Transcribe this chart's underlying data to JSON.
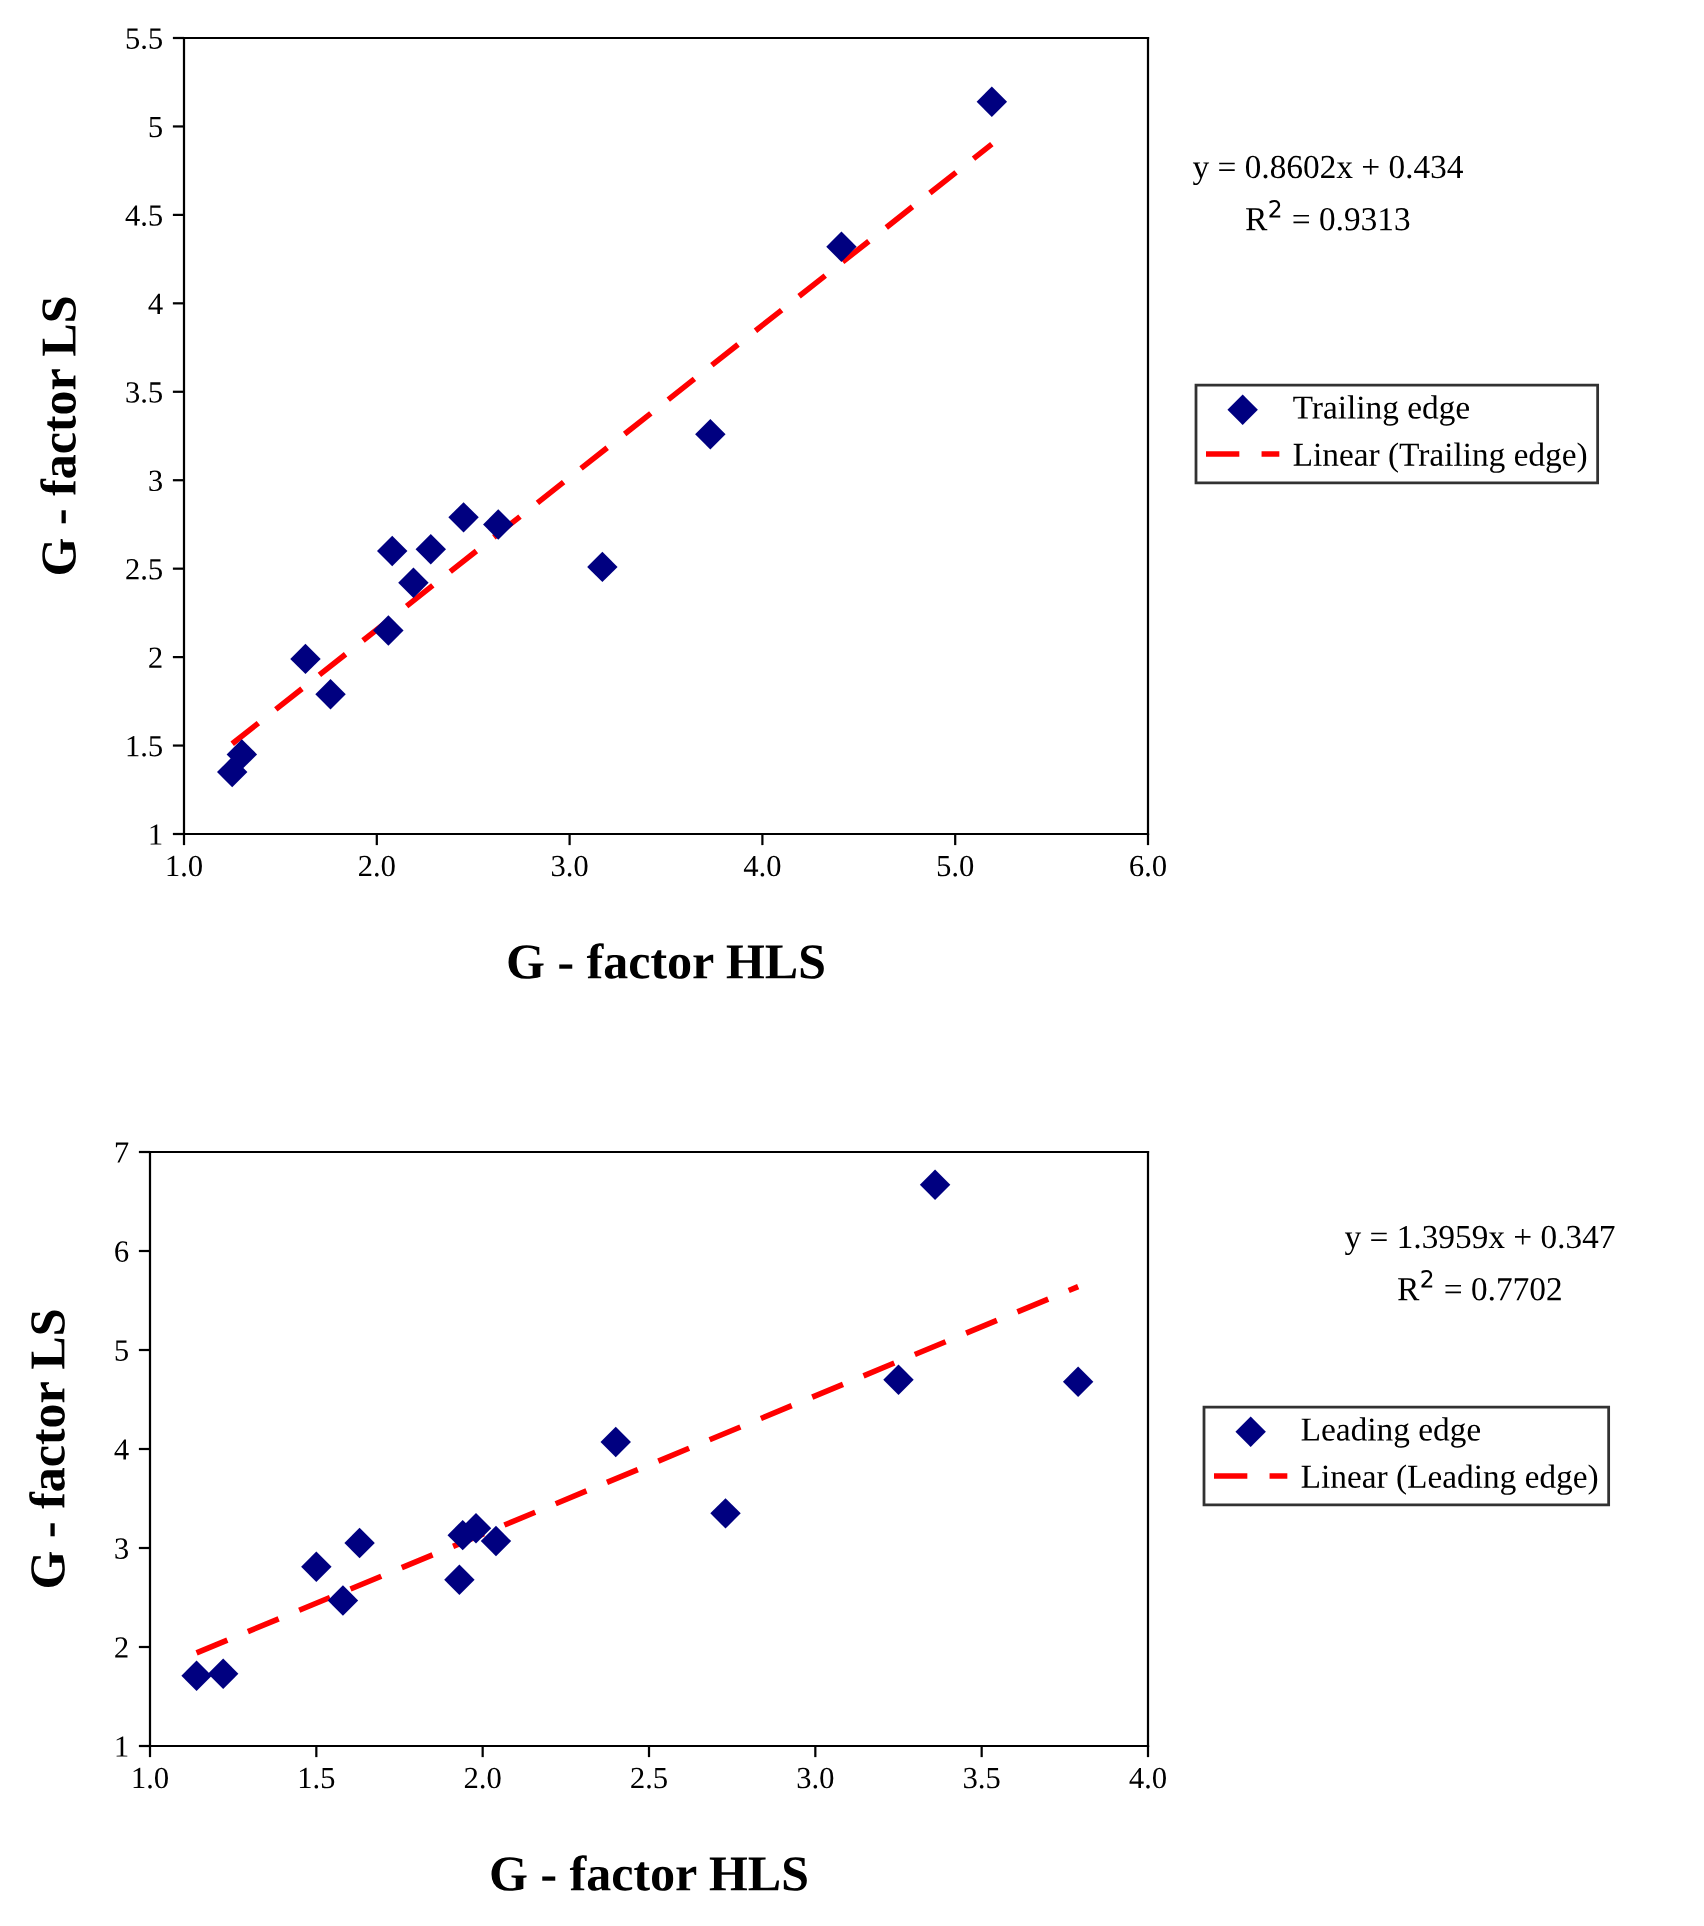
{
  "chart_data": [
    {
      "type": "scatter",
      "xlabel": "G - factor HLS",
      "ylabel": "G - factor LS",
      "xlim": [
        1.0,
        6.0
      ],
      "xticks": [
        {
          "value": 1.0,
          "label": "1.0"
        },
        {
          "value": 2.0,
          "label": "2.0"
        },
        {
          "value": 3.0,
          "label": "3.0"
        },
        {
          "value": 4.0,
          "label": "4.0"
        },
        {
          "value": 5.0,
          "label": "5.0"
        },
        {
          "value": 6.0,
          "label": "6.0"
        }
      ],
      "ylim": [
        1,
        5.5
      ],
      "yticks": [
        1,
        1.5,
        2,
        2.5,
        3,
        3.5,
        4,
        4.5,
        5,
        5.5
      ],
      "grid": false,
      "legend": "right",
      "marker": "diamond",
      "series": [
        {
          "name": "Trailing edge",
          "color": "#000080",
          "x": [
            1.25,
            1.3,
            1.63,
            1.76,
            2.06,
            2.08,
            2.19,
            2.28,
            2.45,
            2.63,
            3.17,
            3.73,
            4.41,
            5.19
          ],
          "values": [
            1.35,
            1.45,
            1.99,
            1.79,
            2.15,
            2.6,
            2.42,
            2.61,
            2.79,
            2.75,
            2.51,
            3.26,
            4.32,
            5.14
          ]
        },
        {
          "name": "Linear (Trailing edge)",
          "type": "line",
          "line_style": "dashed",
          "marker": "none",
          "color": "#ff0000",
          "x": [
            1.25,
            5.19
          ],
          "values": [
            1.51,
            4.9
          ]
        }
      ],
      "annotations": [
        "y = 0.8602x + 0.434",
        "R$^{2}$ = 0.9313"
      ]
    },
    {
      "type": "scatter",
      "xlabel": "G - factor HLS",
      "ylabel": "G - factor LS",
      "xlim": [
        1.0,
        4.0
      ],
      "xticks": [
        {
          "value": 1.0,
          "label": "1.0"
        },
        {
          "value": 1.5,
          "label": "1.5"
        },
        {
          "value": 2.0,
          "label": "2.0"
        },
        {
          "value": 2.5,
          "label": "2.5"
        },
        {
          "value": 3.0,
          "label": "3.0"
        },
        {
          "value": 3.5,
          "label": "3.5"
        },
        {
          "value": 4.0,
          "label": "4.0"
        }
      ],
      "ylim": [
        1,
        7
      ],
      "yticks": [
        1,
        2,
        3,
        4,
        5,
        6,
        7
      ],
      "grid": false,
      "legend": "right",
      "marker": "diamond",
      "series": [
        {
          "name": "Leading edge",
          "color": "#000080",
          "x": [
            1.14,
            1.22,
            1.5,
            1.58,
            1.63,
            1.93,
            1.94,
            1.98,
            2.04,
            2.4,
            2.73,
            3.25,
            3.36,
            3.79
          ],
          "values": [
            1.71,
            1.73,
            2.81,
            2.47,
            3.05,
            2.68,
            3.13,
            3.2,
            3.07,
            4.07,
            3.35,
            4.7,
            6.67,
            4.68
          ]
        },
        {
          "name": "Linear (Leading edge)",
          "type": "line",
          "line_style": "dashed",
          "marker": "none",
          "color": "#ff0000",
          "x": [
            1.14,
            3.79
          ],
          "values": [
            1.94,
            5.64
          ]
        }
      ],
      "annotations": [
        "y = 1.3959x + 0.347",
        "R$^{2}$ = 0.7702"
      ]
    }
  ]
}
